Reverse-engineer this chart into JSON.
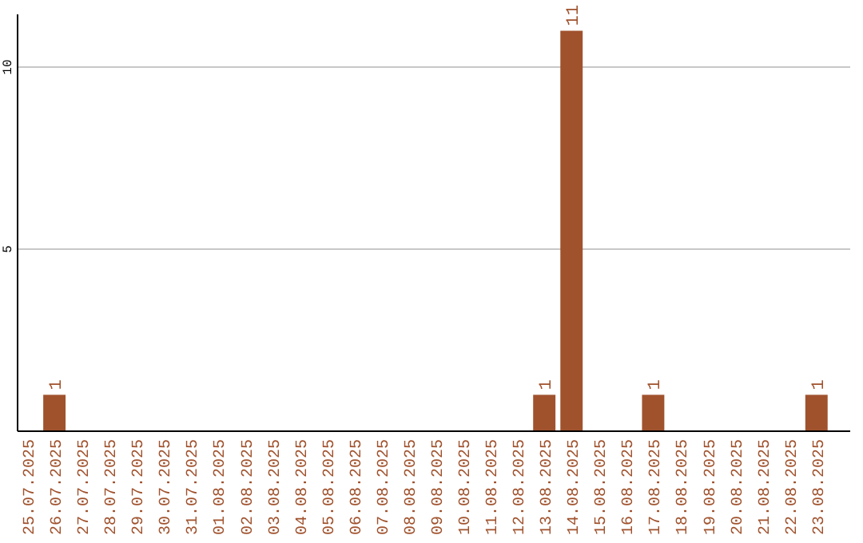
{
  "chart_data": {
    "type": "bar",
    "categories": [
      "25.07.2025",
      "26.07.2025",
      "27.07.2025",
      "28.07.2025",
      "29.07.2025",
      "30.07.2025",
      "31.07.2025",
      "01.08.2025",
      "02.08.2025",
      "03.08.2025",
      "04.08.2025",
      "05.08.2025",
      "06.08.2025",
      "07.08.2025",
      "08.08.2025",
      "09.08.2025",
      "10.08.2025",
      "11.08.2025",
      "12.08.2025",
      "13.08.2025",
      "14.08.2025",
      "15.08.2025",
      "16.08.2025",
      "17.08.2025",
      "18.08.2025",
      "19.08.2025",
      "20.08.2025",
      "21.08.2025",
      "22.08.2025",
      "23.08.2025"
    ],
    "values": [
      0,
      1,
      0,
      0,
      0,
      0,
      0,
      0,
      0,
      0,
      0,
      0,
      0,
      0,
      0,
      0,
      0,
      0,
      0,
      1,
      11,
      0,
      0,
      1,
      0,
      0,
      0,
      0,
      0,
      1
    ],
    "value_labels": [
      null,
      "1",
      null,
      null,
      null,
      null,
      null,
      null,
      null,
      null,
      null,
      null,
      null,
      null,
      null,
      null,
      null,
      null,
      null,
      "1",
      "11",
      null,
      null,
      "1",
      null,
      null,
      null,
      null,
      null,
      "1"
    ],
    "color": "#a0522d",
    "ylim": [
      0,
      11.45
    ],
    "yticks": [
      5,
      10
    ],
    "grid": "y"
  }
}
